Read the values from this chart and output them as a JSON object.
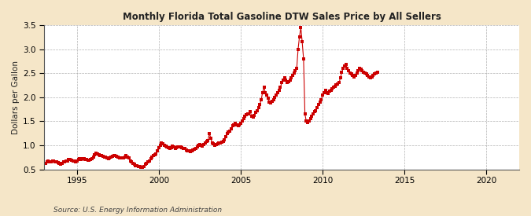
{
  "title": "Monthly Florida Total Gasoline DTW Sales Price by All Sellers",
  "ylabel": "Dollars per Gallon",
  "source_text": "Source: U.S. Energy Information Administration",
  "figure_bg_color": "#F5E6C8",
  "plot_bg_color": "#FFFFFF",
  "line_color": "#CC0000",
  "dot_color": "#CC0000",
  "dot_size": 3,
  "xlim": [
    1993.0,
    2022.0
  ],
  "ylim": [
    0.5,
    3.5
  ],
  "xticks": [
    1995,
    2000,
    2005,
    2010,
    2015,
    2020
  ],
  "yticks": [
    0.5,
    1.0,
    1.5,
    2.0,
    2.5,
    3.0,
    3.5
  ],
  "data": {
    "dates": [
      1993.0,
      1993.083,
      1993.167,
      1993.25,
      1993.333,
      1993.417,
      1993.5,
      1993.583,
      1993.667,
      1993.75,
      1993.833,
      1993.917,
      1994.0,
      1994.083,
      1994.167,
      1994.25,
      1994.333,
      1994.417,
      1994.5,
      1994.583,
      1994.667,
      1994.75,
      1994.833,
      1994.917,
      1995.0,
      1995.083,
      1995.167,
      1995.25,
      1995.333,
      1995.417,
      1995.5,
      1995.583,
      1995.667,
      1995.75,
      1995.833,
      1995.917,
      1996.0,
      1996.083,
      1996.167,
      1996.25,
      1996.333,
      1996.417,
      1996.5,
      1996.583,
      1996.667,
      1996.75,
      1996.833,
      1996.917,
      1997.0,
      1997.083,
      1997.167,
      1997.25,
      1997.333,
      1997.417,
      1997.5,
      1997.583,
      1997.667,
      1997.75,
      1997.833,
      1997.917,
      1998.0,
      1998.083,
      1998.167,
      1998.25,
      1998.333,
      1998.417,
      1998.5,
      1998.583,
      1998.667,
      1998.75,
      1998.833,
      1998.917,
      1999.0,
      1999.083,
      1999.167,
      1999.25,
      1999.333,
      1999.417,
      1999.5,
      1999.583,
      1999.667,
      1999.75,
      1999.833,
      1999.917,
      2000.0,
      2000.083,
      2000.167,
      2000.25,
      2000.333,
      2000.417,
      2000.5,
      2000.583,
      2000.667,
      2000.75,
      2000.833,
      2000.917,
      2001.0,
      2001.083,
      2001.167,
      2001.25,
      2001.333,
      2001.417,
      2001.5,
      2001.583,
      2001.667,
      2001.75,
      2001.833,
      2001.917,
      2002.0,
      2002.083,
      2002.167,
      2002.25,
      2002.333,
      2002.417,
      2002.5,
      2002.583,
      2002.667,
      2002.75,
      2002.833,
      2002.917,
      2003.0,
      2003.083,
      2003.167,
      2003.25,
      2003.333,
      2003.417,
      2003.5,
      2003.583,
      2003.667,
      2003.75,
      2003.833,
      2003.917,
      2004.0,
      2004.083,
      2004.167,
      2004.25,
      2004.333,
      2004.417,
      2004.5,
      2004.583,
      2004.667,
      2004.75,
      2004.833,
      2004.917,
      2005.0,
      2005.083,
      2005.167,
      2005.25,
      2005.333,
      2005.417,
      2005.5,
      2005.583,
      2005.667,
      2005.75,
      2005.833,
      2005.917,
      2006.0,
      2006.083,
      2006.167,
      2006.25,
      2006.333,
      2006.417,
      2006.5,
      2006.583,
      2006.667,
      2006.75,
      2006.833,
      2006.917,
      2007.0,
      2007.083,
      2007.167,
      2007.25,
      2007.333,
      2007.417,
      2007.5,
      2007.583,
      2007.667,
      2007.75,
      2007.833,
      2007.917,
      2008.0,
      2008.083,
      2008.167,
      2008.25,
      2008.333,
      2008.417,
      2008.5,
      2008.583,
      2008.667,
      2008.75,
      2008.833,
      2008.917,
      2009.0,
      2009.083,
      2009.167,
      2009.25,
      2009.333,
      2009.417,
      2009.5,
      2009.583,
      2009.667,
      2009.75,
      2009.833,
      2009.917,
      2010.0,
      2010.083,
      2010.167,
      2010.25,
      2010.333,
      2010.417,
      2010.5,
      2010.583,
      2010.667,
      2010.75,
      2010.833,
      2010.917,
      2011.0,
      2011.083,
      2011.167,
      2011.25,
      2011.333,
      2011.417,
      2011.5,
      2011.583,
      2011.667,
      2011.75,
      2011.833,
      2011.917,
      2012.0,
      2012.083,
      2012.167,
      2012.25,
      2012.333,
      2012.417,
      2012.5,
      2012.583,
      2012.667,
      2012.75,
      2012.833,
      2012.917,
      2013.0,
      2013.083,
      2013.167,
      2013.25,
      2013.333
    ],
    "values": [
      0.63,
      0.63,
      0.65,
      0.67,
      0.65,
      0.66,
      0.68,
      0.67,
      0.66,
      0.65,
      0.64,
      0.62,
      0.61,
      0.62,
      0.65,
      0.66,
      0.67,
      0.68,
      0.7,
      0.7,
      0.69,
      0.68,
      0.67,
      0.66,
      0.67,
      0.7,
      0.72,
      0.71,
      0.72,
      0.72,
      0.71,
      0.7,
      0.69,
      0.69,
      0.7,
      0.72,
      0.75,
      0.8,
      0.83,
      0.82,
      0.8,
      0.78,
      0.78,
      0.77,
      0.76,
      0.75,
      0.73,
      0.72,
      0.73,
      0.76,
      0.77,
      0.78,
      0.78,
      0.77,
      0.75,
      0.74,
      0.73,
      0.73,
      0.74,
      0.76,
      0.78,
      0.76,
      0.74,
      0.68,
      0.65,
      0.62,
      0.6,
      0.58,
      0.57,
      0.56,
      0.55,
      0.54,
      0.54,
      0.56,
      0.6,
      0.62,
      0.65,
      0.68,
      0.72,
      0.75,
      0.78,
      0.8,
      0.82,
      0.88,
      0.95,
      1.0,
      1.05,
      1.03,
      1.0,
      0.98,
      0.97,
      0.95,
      0.93,
      0.95,
      0.98,
      0.97,
      0.94,
      0.95,
      0.97,
      0.96,
      0.97,
      0.95,
      0.94,
      0.93,
      0.9,
      0.88,
      0.88,
      0.87,
      0.88,
      0.9,
      0.92,
      0.93,
      0.97,
      1.0,
      1.02,
      1.0,
      0.99,
      1.02,
      1.05,
      1.08,
      1.1,
      1.25,
      1.15,
      1.05,
      1.03,
      1.0,
      1.02,
      1.03,
      1.05,
      1.05,
      1.06,
      1.08,
      1.12,
      1.18,
      1.25,
      1.28,
      1.3,
      1.35,
      1.4,
      1.42,
      1.45,
      1.42,
      1.4,
      1.42,
      1.45,
      1.5,
      1.55,
      1.6,
      1.63,
      1.65,
      1.65,
      1.7,
      1.6,
      1.58,
      1.62,
      1.68,
      1.72,
      1.78,
      1.85,
      1.95,
      2.1,
      2.2,
      2.1,
      2.05,
      1.98,
      1.9,
      1.88,
      1.92,
      1.95,
      2.0,
      2.05,
      2.1,
      2.15,
      2.2,
      2.3,
      2.35,
      2.4,
      2.35,
      2.3,
      2.32,
      2.35,
      2.4,
      2.45,
      2.5,
      2.55,
      2.6,
      3.0,
      3.25,
      3.45,
      3.15,
      2.8,
      1.65,
      1.5,
      1.48,
      1.5,
      1.55,
      1.6,
      1.65,
      1.7,
      1.72,
      1.78,
      1.85,
      1.9,
      1.95,
      2.05,
      2.1,
      2.15,
      2.1,
      2.08,
      2.12,
      2.15,
      2.18,
      2.2,
      2.22,
      2.25,
      2.28,
      2.3,
      2.4,
      2.52,
      2.6,
      2.65,
      2.68,
      2.6,
      2.55,
      2.5,
      2.48,
      2.45,
      2.42,
      2.45,
      2.5,
      2.55,
      2.6,
      2.58,
      2.55,
      2.52,
      2.5,
      2.48,
      2.45,
      2.42,
      2.4,
      2.42,
      2.45,
      2.48,
      2.5,
      2.52
    ]
  }
}
